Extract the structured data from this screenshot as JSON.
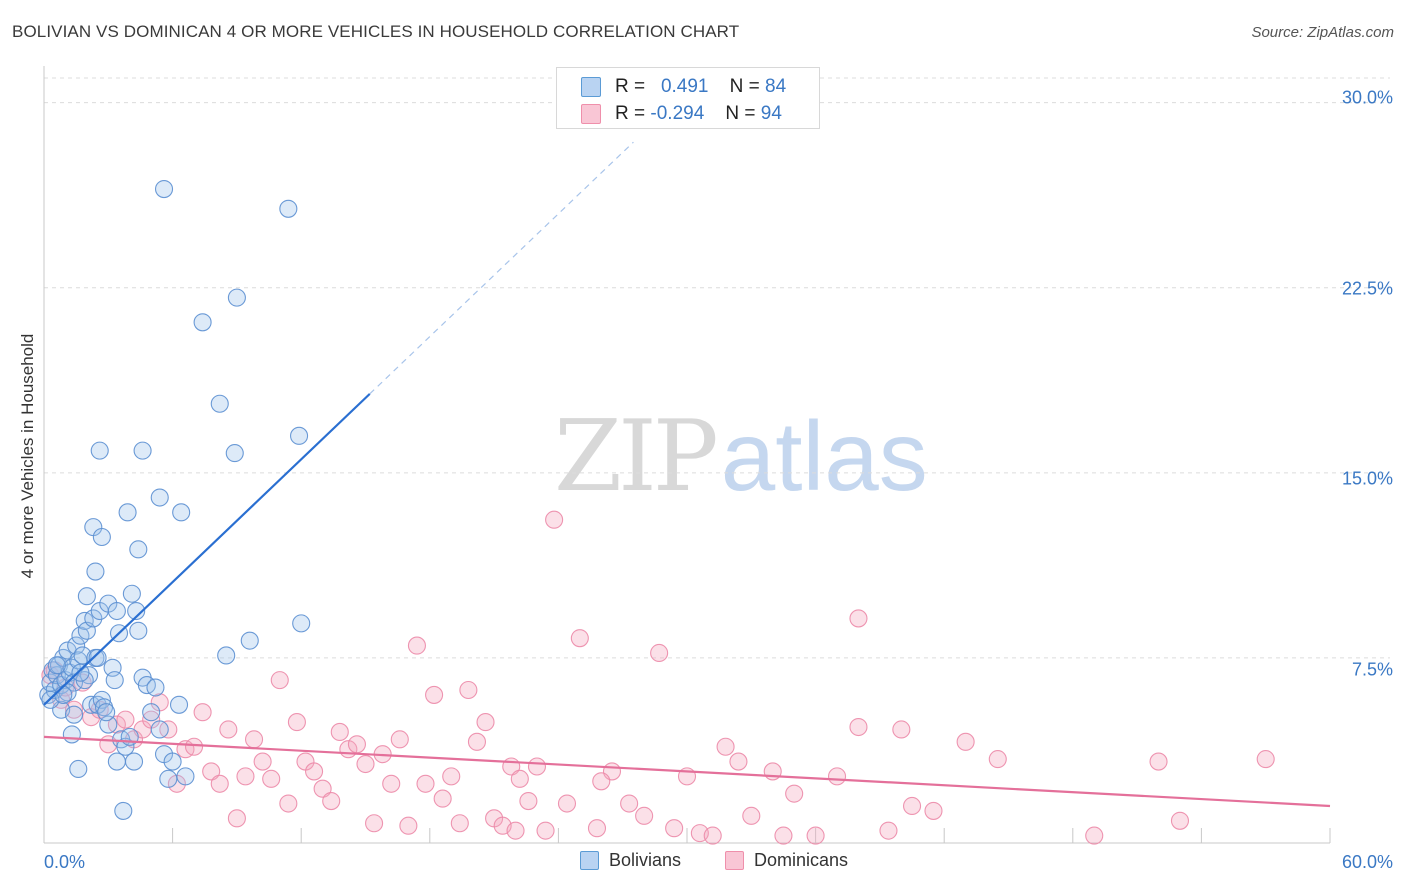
{
  "title": "BOLIVIAN VS DOMINICAN 4 OR MORE VEHICLES IN HOUSEHOLD CORRELATION CHART",
  "source": "Source: ZipAtlas.com",
  "watermark": {
    "zip": "ZIP",
    "atlas": "atlas"
  },
  "colors": {
    "blue": "#5b9bd5",
    "blue_line": "#2a6fd1",
    "pink": "#ef8fab",
    "pink_line": "#e4709a",
    "tick_text": "#3a78c4"
  },
  "stats": {
    "blue": {
      "r_label": "R =",
      "r_value": "0.491",
      "n_label": "N =",
      "n_value": "84"
    },
    "pink": {
      "r_label": "R =",
      "r_value": "-0.294",
      "n_label": "N =",
      "n_value": "94"
    }
  },
  "chart_data": {
    "type": "scatter",
    "title": "BOLIVIAN VS DOMINICAN 4 OR MORE VEHICLES IN HOUSEHOLD CORRELATION CHART",
    "xlabel": "",
    "ylabel": "4 or more Vehicles in Household",
    "xlim": [
      0,
      60
    ],
    "ylim": [
      0,
      31
    ],
    "x_tick_labels": [
      "0.0%",
      "60.0%"
    ],
    "y_ticks": [
      7.5,
      15.0,
      22.5,
      30.0
    ],
    "y_tick_labels": [
      "7.5%",
      "15.0%",
      "22.5%",
      "30.0%"
    ],
    "legend": [
      "Bolivians",
      "Dominicans"
    ],
    "series": [
      {
        "name": "Bolivians",
        "color": "#5b9bd5",
        "points": [
          [
            0.2,
            6.0
          ],
          [
            0.3,
            6.5
          ],
          [
            0.4,
            7.0
          ],
          [
            0.5,
            6.2
          ],
          [
            0.6,
            6.8
          ],
          [
            0.7,
            7.2
          ],
          [
            0.8,
            6.4
          ],
          [
            0.9,
            7.5
          ],
          [
            1.0,
            6.6
          ],
          [
            1.1,
            7.8
          ],
          [
            1.2,
            6.9
          ],
          [
            1.3,
            7.1
          ],
          [
            1.4,
            6.5
          ],
          [
            1.5,
            8.0
          ],
          [
            1.6,
            7.4
          ],
          [
            1.7,
            8.4
          ],
          [
            1.8,
            7.6
          ],
          [
            1.9,
            9.0
          ],
          [
            2.0,
            8.6
          ],
          [
            2.1,
            6.8
          ],
          [
            2.2,
            5.6
          ],
          [
            2.3,
            9.1
          ],
          [
            2.4,
            7.5
          ],
          [
            2.5,
            5.6
          ],
          [
            2.6,
            9.4
          ],
          [
            2.7,
            5.8
          ],
          [
            2.8,
            5.5
          ],
          [
            3.0,
            4.8
          ],
          [
            3.2,
            7.1
          ],
          [
            3.4,
            3.3
          ],
          [
            3.6,
            4.2
          ],
          [
            3.8,
            3.9
          ],
          [
            4.0,
            4.3
          ],
          [
            4.2,
            3.3
          ],
          [
            4.4,
            8.6
          ],
          [
            4.6,
            6.7
          ],
          [
            4.8,
            6.4
          ],
          [
            5.0,
            5.3
          ],
          [
            5.2,
            6.3
          ],
          [
            5.4,
            4.6
          ],
          [
            5.6,
            3.6
          ],
          [
            5.8,
            2.6
          ],
          [
            6.0,
            3.3
          ],
          [
            6.3,
            5.6
          ],
          [
            6.6,
            2.7
          ],
          [
            1.3,
            4.4
          ],
          [
            1.6,
            3.0
          ],
          [
            3.7,
            1.3
          ],
          [
            2.0,
            10.0
          ],
          [
            2.4,
            11.0
          ],
          [
            2.3,
            12.8
          ],
          [
            2.7,
            12.4
          ],
          [
            3.9,
            13.4
          ],
          [
            4.4,
            11.9
          ],
          [
            4.1,
            10.1
          ],
          [
            3.0,
            9.7
          ],
          [
            3.4,
            9.4
          ],
          [
            2.6,
            15.9
          ],
          [
            4.6,
            15.9
          ],
          [
            5.4,
            14.0
          ],
          [
            6.4,
            13.4
          ],
          [
            5.6,
            26.5
          ],
          [
            11.4,
            25.7
          ],
          [
            9.0,
            22.1
          ],
          [
            7.4,
            21.1
          ],
          [
            8.2,
            17.8
          ],
          [
            8.9,
            15.8
          ],
          [
            11.9,
            16.5
          ],
          [
            8.5,
            7.6
          ],
          [
            9.6,
            8.2
          ],
          [
            12.0,
            8.9
          ],
          [
            4.3,
            9.4
          ],
          [
            3.5,
            8.5
          ],
          [
            0.8,
            5.4
          ],
          [
            1.1,
            6.1
          ],
          [
            0.3,
            5.8
          ],
          [
            0.6,
            7.2
          ],
          [
            1.9,
            6.6
          ],
          [
            2.5,
            7.5
          ],
          [
            1.4,
            5.2
          ],
          [
            0.9,
            6.0
          ],
          [
            1.7,
            6.9
          ],
          [
            2.9,
            5.3
          ],
          [
            3.3,
            6.6
          ]
        ]
      },
      {
        "name": "Dominicans",
        "color": "#ef8fab",
        "points": [
          [
            0.3,
            6.8
          ],
          [
            0.5,
            7.0
          ],
          [
            0.8,
            5.8
          ],
          [
            1.0,
            6.3
          ],
          [
            1.4,
            5.4
          ],
          [
            1.8,
            6.5
          ],
          [
            2.2,
            5.1
          ],
          [
            2.6,
            5.4
          ],
          [
            3.0,
            4.0
          ],
          [
            3.4,
            4.8
          ],
          [
            3.8,
            5.0
          ],
          [
            4.2,
            4.2
          ],
          [
            4.6,
            4.6
          ],
          [
            5.0,
            5.0
          ],
          [
            5.4,
            5.7
          ],
          [
            5.8,
            4.6
          ],
          [
            6.2,
            2.4
          ],
          [
            6.6,
            3.8
          ],
          [
            7.0,
            3.9
          ],
          [
            7.4,
            5.3
          ],
          [
            7.8,
            2.9
          ],
          [
            8.2,
            2.4
          ],
          [
            8.6,
            4.6
          ],
          [
            9.0,
            1.0
          ],
          [
            9.4,
            2.7
          ],
          [
            9.8,
            4.2
          ],
          [
            10.2,
            3.3
          ],
          [
            10.6,
            2.6
          ],
          [
            11.0,
            6.6
          ],
          [
            11.4,
            1.6
          ],
          [
            11.8,
            4.9
          ],
          [
            12.2,
            3.3
          ],
          [
            12.6,
            2.9
          ],
          [
            13.0,
            2.2
          ],
          [
            13.4,
            1.7
          ],
          [
            13.8,
            4.5
          ],
          [
            14.2,
            3.8
          ],
          [
            14.6,
            4.0
          ],
          [
            15.0,
            3.2
          ],
          [
            15.4,
            0.8
          ],
          [
            15.8,
            3.6
          ],
          [
            16.2,
            2.4
          ],
          [
            16.6,
            4.2
          ],
          [
            17.0,
            0.7
          ],
          [
            17.4,
            8.0
          ],
          [
            17.8,
            2.4
          ],
          [
            18.2,
            6.0
          ],
          [
            18.6,
            1.8
          ],
          [
            19.0,
            2.7
          ],
          [
            19.4,
            0.8
          ],
          [
            19.8,
            6.2
          ],
          [
            20.2,
            4.1
          ],
          [
            20.6,
            4.9
          ],
          [
            21.0,
            1.0
          ],
          [
            21.4,
            0.7
          ],
          [
            21.8,
            3.1
          ],
          [
            22.2,
            2.6
          ],
          [
            22.6,
            1.7
          ],
          [
            23.0,
            3.1
          ],
          [
            23.4,
            0.5
          ],
          [
            23.8,
            13.1
          ],
          [
            24.4,
            1.6
          ],
          [
            25.0,
            8.3
          ],
          [
            25.8,
            0.6
          ],
          [
            26.5,
            2.9
          ],
          [
            27.3,
            1.6
          ],
          [
            28.0,
            1.1
          ],
          [
            28.7,
            7.7
          ],
          [
            29.4,
            0.6
          ],
          [
            30.0,
            2.7
          ],
          [
            30.6,
            0.4
          ],
          [
            31.2,
            0.3
          ],
          [
            31.8,
            3.9
          ],
          [
            32.4,
            3.3
          ],
          [
            33.0,
            1.1
          ],
          [
            34.0,
            2.9
          ],
          [
            35.0,
            2.0
          ],
          [
            36.0,
            0.3
          ],
          [
            37.0,
            2.7
          ],
          [
            38.0,
            9.1
          ],
          [
            38.0,
            4.7
          ],
          [
            39.4,
            0.5
          ],
          [
            40.0,
            4.6
          ],
          [
            41.5,
            1.3
          ],
          [
            43.0,
            4.1
          ],
          [
            44.5,
            3.4
          ],
          [
            49.0,
            0.3
          ],
          [
            53.0,
            0.9
          ],
          [
            52.0,
            3.3
          ],
          [
            57.0,
            3.4
          ],
          [
            22.0,
            0.5
          ],
          [
            26.0,
            2.5
          ],
          [
            34.5,
            0.3
          ],
          [
            40.5,
            1.5
          ]
        ]
      }
    ],
    "trendlines": [
      {
        "series": "Bolivians",
        "x": [
          0,
          15.2
        ],
        "y": [
          5.6,
          18.2
        ],
        "dashed_extension": {
          "x": [
            15.2,
            27.5
          ],
          "y": [
            18.2,
            28.4
          ]
        }
      },
      {
        "series": "Dominicans",
        "x": [
          0,
          60
        ],
        "y": [
          4.3,
          1.5
        ]
      }
    ]
  }
}
